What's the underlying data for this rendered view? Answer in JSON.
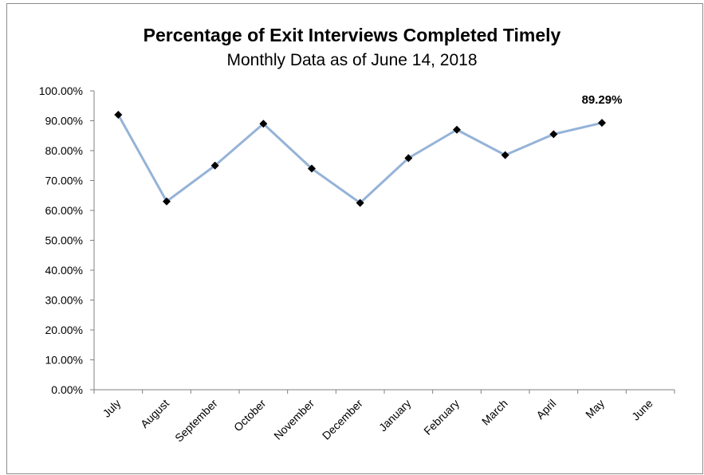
{
  "chart_data": {
    "type": "line",
    "title": "Percentage of Exit Interviews Completed Timely",
    "subtitle": "Monthly Data as of June 14, 2018",
    "xlabel": "",
    "ylabel": "",
    "categories": [
      "July",
      "August",
      "September",
      "October",
      "November",
      "December",
      "January",
      "February",
      "March",
      "April",
      "May",
      "June"
    ],
    "yticks": [
      "0.00%",
      "10.00%",
      "20.00%",
      "30.00%",
      "40.00%",
      "50.00%",
      "60.00%",
      "70.00%",
      "80.00%",
      "90.00%",
      "100.00%"
    ],
    "ylim": [
      0,
      100
    ],
    "series": [
      {
        "values": [
          92.0,
          63.0,
          75.0,
          89.0,
          74.0,
          62.5,
          77.5,
          87.0,
          78.5,
          85.5,
          89.29,
          null
        ],
        "color": "#95b3d7",
        "marker_color": "#000000"
      }
    ],
    "data_labels": [
      {
        "index": 10,
        "text": "89.29%"
      }
    ],
    "grid": false,
    "legend": "none"
  }
}
